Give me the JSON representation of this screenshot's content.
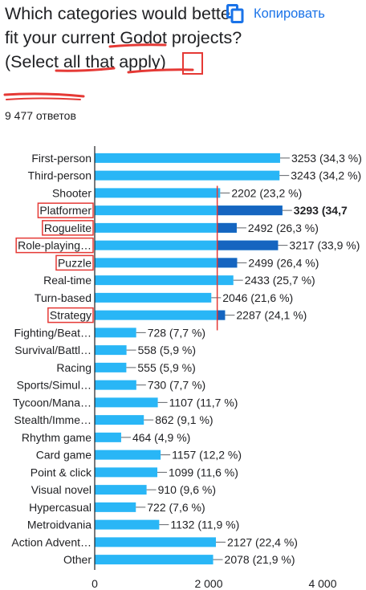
{
  "question": {
    "text": "Which categories would better fit your current Godot projects? (Select all that apply)"
  },
  "copy_button": {
    "label": "Копировать",
    "icon": "copy-icon"
  },
  "responses_count": "9 477 ответов",
  "colors": {
    "bar": "#29b6f6",
    "bar_highlight": "#1565c0",
    "annotation": "#e53935",
    "axis": "#202124"
  },
  "chart_data": {
    "type": "bar",
    "orientation": "horizontal",
    "xlim": [
      0,
      4000
    ],
    "x_ticks": [
      0,
      2000,
      4000
    ],
    "x_tick_labels": [
      "0",
      "2 000",
      "4 000"
    ],
    "grid": false,
    "categories": [
      "First-person",
      "Third-person",
      "Shooter",
      "Platformer",
      "Roguelite",
      "Role-playing…",
      "Puzzle",
      "Real-time",
      "Turn-based",
      "Strategy",
      "Fighting/Beat…",
      "Survival/Battl…",
      "Racing",
      "Sports/Simul…",
      "Tycoon/Mana…",
      "Stealth/Imme…",
      "Rhythm game",
      "Card game",
      "Point & click",
      "Visual novel",
      "Hypercasual",
      "Metroidvania",
      "Action Advent…",
      "Other"
    ],
    "values": [
      3253,
      3243,
      2202,
      3293,
      2492,
      3217,
      2499,
      2433,
      2046,
      2287,
      728,
      558,
      555,
      730,
      1107,
      862,
      464,
      1157,
      1099,
      910,
      722,
      1132,
      2127,
      2078
    ],
    "value_labels": [
      "3253 (34,3 %)",
      "3243 (34,2 %)",
      "2202 (23,2 %)",
      "3293 (34,7",
      "2492 (26,3 %)",
      "3217 (33,9 %)",
      "2499 (26,4 %)",
      "2433 (25,7 %)",
      "2046 (21,6 %)",
      "2287 (24,1 %)",
      "728 (7,7 %)",
      "558 (5,9 %)",
      "555 (5,9 %)",
      "730 (7,7 %)",
      "1107 (11,7 %)",
      "862 (9,1 %)",
      "464 (4,9 %)",
      "1157 (12,2 %)",
      "1099 (11,6 %)",
      "910 (9,6 %)",
      "722 (7,6 %)",
      "1132 (11,9 %)",
      "2127 (22,4 %)",
      "2078 (21,9 %)"
    ],
    "bold_label_index": 3,
    "annotations": {
      "boxed_categories": [
        3,
        4,
        5,
        6,
        9
      ],
      "reference_line_value": 2150,
      "reference_line_rows": [
        2,
        9
      ]
    }
  }
}
